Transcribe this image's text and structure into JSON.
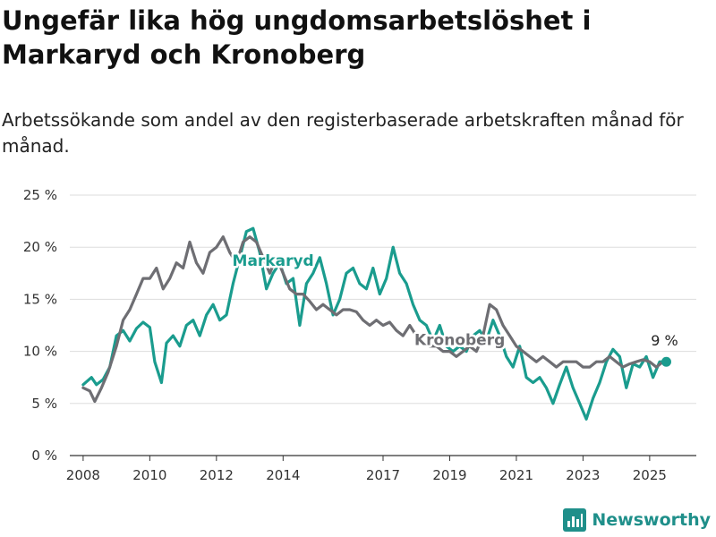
{
  "header": {
    "title": "Ungefär lika hög ungdomsarbetslöshet i Markaryd och Kronoberg",
    "subtitle": "Arbetssökande som andel av den registerbaserade arbetskraften månad för månad."
  },
  "brand": {
    "name": "Newsworthy",
    "icon": "bar-chart-logo-icon"
  },
  "chart_data": {
    "type": "line",
    "title": "Ungefär lika hög ungdomsarbetslöshet i Markaryd och Kronoberg",
    "subtitle": "Arbetssökande som andel av den registerbaserade arbetskraften månad för månad.",
    "ylim": [
      0,
      25
    ],
    "yticks": [
      0,
      5,
      10,
      15,
      20,
      25
    ],
    "ytick_labels": [
      "0 %",
      "5 %",
      "10 %",
      "15 %",
      "20 %",
      "25 %"
    ],
    "xlim": [
      2007.6,
      2026.4
    ],
    "xticks": [
      2008,
      2010,
      2012,
      2014,
      2017,
      2019,
      2021,
      2023,
      2025
    ],
    "xtick_labels": [
      "2008",
      "2010",
      "2012",
      "2014",
      "2017",
      "2019",
      "2021",
      "2023",
      "2025"
    ],
    "grid": true,
    "end_label": "9 %",
    "colors": {
      "Markaryd": "#1a9c8e",
      "Kronoberg": "#6e6e73",
      "grid": "#dddddd",
      "axis": "#333333"
    },
    "series": [
      {
        "name": "Markaryd",
        "color": "#1a9c8e",
        "points": [
          [
            2008.0,
            6.8
          ],
          [
            2008.25,
            7.5
          ],
          [
            2008.4,
            6.8
          ],
          [
            2008.6,
            7.3
          ],
          [
            2008.8,
            8.5
          ],
          [
            2009.0,
            11.5
          ],
          [
            2009.2,
            12.0
          ],
          [
            2009.4,
            11.0
          ],
          [
            2009.6,
            12.2
          ],
          [
            2009.8,
            12.8
          ],
          [
            2010.0,
            12.3
          ],
          [
            2010.15,
            9.0
          ],
          [
            2010.35,
            7.0
          ],
          [
            2010.5,
            10.8
          ],
          [
            2010.7,
            11.5
          ],
          [
            2010.9,
            10.5
          ],
          [
            2011.1,
            12.5
          ],
          [
            2011.3,
            13.0
          ],
          [
            2011.5,
            11.5
          ],
          [
            2011.7,
            13.5
          ],
          [
            2011.9,
            14.5
          ],
          [
            2012.1,
            13.0
          ],
          [
            2012.3,
            13.5
          ],
          [
            2012.5,
            16.5
          ],
          [
            2012.7,
            19.0
          ],
          [
            2012.9,
            21.5
          ],
          [
            2013.1,
            21.8
          ],
          [
            2013.3,
            19.5
          ],
          [
            2013.5,
            16.0
          ],
          [
            2013.7,
            17.5
          ],
          [
            2013.9,
            18.5
          ],
          [
            2014.1,
            16.5
          ],
          [
            2014.3,
            17.0
          ],
          [
            2014.5,
            12.5
          ],
          [
            2014.7,
            16.5
          ],
          [
            2014.9,
            17.5
          ],
          [
            2015.1,
            19.0
          ],
          [
            2015.3,
            16.5
          ],
          [
            2015.5,
            13.5
          ],
          [
            2015.7,
            15.0
          ],
          [
            2015.9,
            17.5
          ],
          [
            2016.1,
            18.0
          ],
          [
            2016.3,
            16.5
          ],
          [
            2016.5,
            16.0
          ],
          [
            2016.7,
            18.0
          ],
          [
            2016.9,
            15.5
          ],
          [
            2017.1,
            17.0
          ],
          [
            2017.3,
            20.0
          ],
          [
            2017.5,
            17.5
          ],
          [
            2017.7,
            16.5
          ],
          [
            2017.9,
            14.5
          ],
          [
            2018.1,
            13.0
          ],
          [
            2018.3,
            12.5
          ],
          [
            2018.5,
            11.0
          ],
          [
            2018.7,
            12.5
          ],
          [
            2018.9,
            10.5
          ],
          [
            2019.1,
            10.0
          ],
          [
            2019.3,
            10.5
          ],
          [
            2019.5,
            10.0
          ],
          [
            2019.7,
            11.5
          ],
          [
            2019.9,
            12.0
          ],
          [
            2020.1,
            11.0
          ],
          [
            2020.3,
            13.0
          ],
          [
            2020.5,
            11.5
          ],
          [
            2020.7,
            9.5
          ],
          [
            2020.9,
            8.5
          ],
          [
            2021.1,
            10.5
          ],
          [
            2021.3,
            7.5
          ],
          [
            2021.5,
            7.0
          ],
          [
            2021.7,
            7.5
          ],
          [
            2021.9,
            6.5
          ],
          [
            2022.1,
            5.0
          ],
          [
            2022.3,
            6.8
          ],
          [
            2022.5,
            8.5
          ],
          [
            2022.7,
            6.5
          ],
          [
            2022.9,
            5.0
          ],
          [
            2023.1,
            3.5
          ],
          [
            2023.3,
            5.5
          ],
          [
            2023.5,
            7.0
          ],
          [
            2023.7,
            9.0
          ],
          [
            2023.9,
            10.2
          ],
          [
            2024.1,
            9.5
          ],
          [
            2024.3,
            6.5
          ],
          [
            2024.5,
            8.8
          ],
          [
            2024.7,
            8.5
          ],
          [
            2024.9,
            9.5
          ],
          [
            2025.1,
            7.5
          ],
          [
            2025.3,
            9.0
          ],
          [
            2025.5,
            9.0
          ]
        ]
      },
      {
        "name": "Kronoberg",
        "color": "#6e6e73",
        "points": [
          [
            2008.0,
            6.5
          ],
          [
            2008.2,
            6.2
          ],
          [
            2008.35,
            5.2
          ],
          [
            2008.55,
            6.5
          ],
          [
            2008.75,
            8.0
          ],
          [
            2009.0,
            10.5
          ],
          [
            2009.2,
            13.0
          ],
          [
            2009.4,
            14.0
          ],
          [
            2009.6,
            15.5
          ],
          [
            2009.8,
            17.0
          ],
          [
            2010.0,
            17.0
          ],
          [
            2010.2,
            18.0
          ],
          [
            2010.4,
            16.0
          ],
          [
            2010.6,
            17.0
          ],
          [
            2010.8,
            18.5
          ],
          [
            2011.0,
            18.0
          ],
          [
            2011.2,
            20.5
          ],
          [
            2011.4,
            18.5
          ],
          [
            2011.6,
            17.5
          ],
          [
            2011.8,
            19.5
          ],
          [
            2012.0,
            20.0
          ],
          [
            2012.2,
            21.0
          ],
          [
            2012.4,
            19.5
          ],
          [
            2012.6,
            18.5
          ],
          [
            2012.8,
            20.5
          ],
          [
            2013.0,
            21.0
          ],
          [
            2013.2,
            20.5
          ],
          [
            2013.4,
            19.0
          ],
          [
            2013.6,
            17.5
          ],
          [
            2013.8,
            19.0
          ],
          [
            2014.0,
            17.5
          ],
          [
            2014.2,
            16.0
          ],
          [
            2014.4,
            15.5
          ],
          [
            2014.6,
            15.5
          ],
          [
            2014.8,
            14.8
          ],
          [
            2015.0,
            14.0
          ],
          [
            2015.2,
            14.5
          ],
          [
            2015.4,
            14.0
          ],
          [
            2015.6,
            13.5
          ],
          [
            2015.8,
            14.0
          ],
          [
            2016.0,
            14.0
          ],
          [
            2016.2,
            13.8
          ],
          [
            2016.4,
            13.0
          ],
          [
            2016.6,
            12.5
          ],
          [
            2016.8,
            13.0
          ],
          [
            2017.0,
            12.5
          ],
          [
            2017.2,
            12.8
          ],
          [
            2017.4,
            12.0
          ],
          [
            2017.6,
            11.5
          ],
          [
            2017.8,
            12.5
          ],
          [
            2018.0,
            11.5
          ],
          [
            2018.2,
            11.0
          ],
          [
            2018.4,
            10.5
          ],
          [
            2018.6,
            10.5
          ],
          [
            2018.8,
            10.0
          ],
          [
            2019.0,
            10.0
          ],
          [
            2019.2,
            9.5
          ],
          [
            2019.4,
            10.0
          ],
          [
            2019.6,
            10.5
          ],
          [
            2019.8,
            10.0
          ],
          [
            2020.0,
            11.5
          ],
          [
            2020.2,
            14.5
          ],
          [
            2020.4,
            14.0
          ],
          [
            2020.6,
            12.5
          ],
          [
            2020.8,
            11.5
          ],
          [
            2021.0,
            10.5
          ],
          [
            2021.2,
            10.0
          ],
          [
            2021.4,
            9.5
          ],
          [
            2021.6,
            9.0
          ],
          [
            2021.8,
            9.5
          ],
          [
            2022.0,
            9.0
          ],
          [
            2022.2,
            8.5
          ],
          [
            2022.4,
            9.0
          ],
          [
            2022.6,
            9.0
          ],
          [
            2022.8,
            9.0
          ],
          [
            2023.0,
            8.5
          ],
          [
            2023.2,
            8.5
          ],
          [
            2023.4,
            9.0
          ],
          [
            2023.6,
            9.0
          ],
          [
            2023.8,
            9.5
          ],
          [
            2024.0,
            9.0
          ],
          [
            2024.2,
            8.5
          ],
          [
            2024.4,
            8.8
          ],
          [
            2024.6,
            9.0
          ],
          [
            2024.8,
            9.2
          ],
          [
            2025.0,
            9.0
          ],
          [
            2025.2,
            8.5
          ],
          [
            2025.4,
            9.0
          ],
          [
            2025.5,
            9.0
          ]
        ]
      }
    ],
    "series_labels": [
      {
        "name": "Markaryd",
        "x": 2013.7,
        "y": 18.2
      },
      {
        "name": "Kronoberg",
        "x": 2019.3,
        "y": 10.6
      }
    ]
  }
}
